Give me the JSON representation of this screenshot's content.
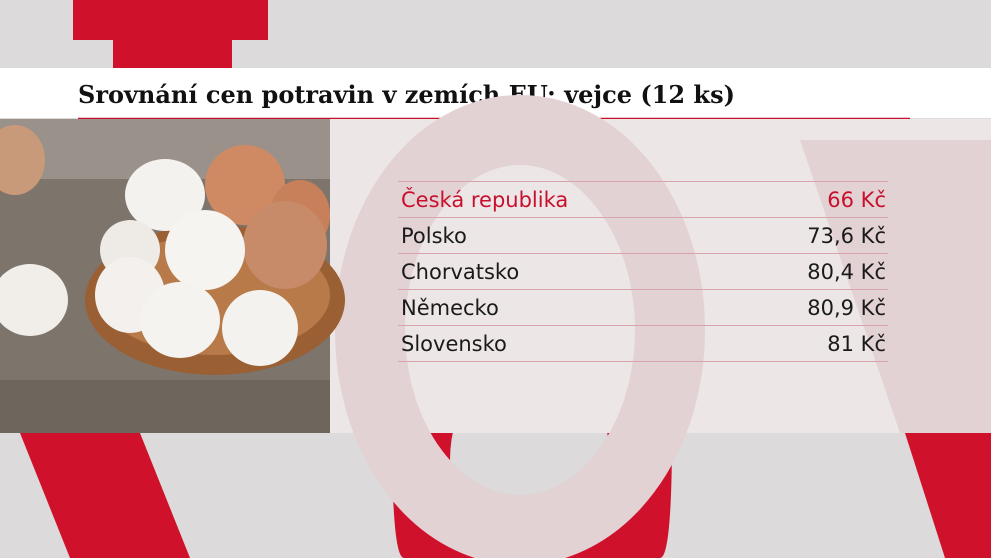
{
  "header": {
    "title": "Srovnání cen potravin v zemích EU: vejce (12 ks)"
  },
  "table": {
    "rows": [
      [
        "Česká republika",
        "66 Kč"
      ],
      [
        "Polsko",
        "73,6 Kč"
      ],
      [
        "Chorvatsko",
        "80,4 Kč"
      ],
      [
        "Německo",
        "80,9 Kč"
      ],
      [
        "Slovensko",
        "81 Kč"
      ]
    ]
  }
}
